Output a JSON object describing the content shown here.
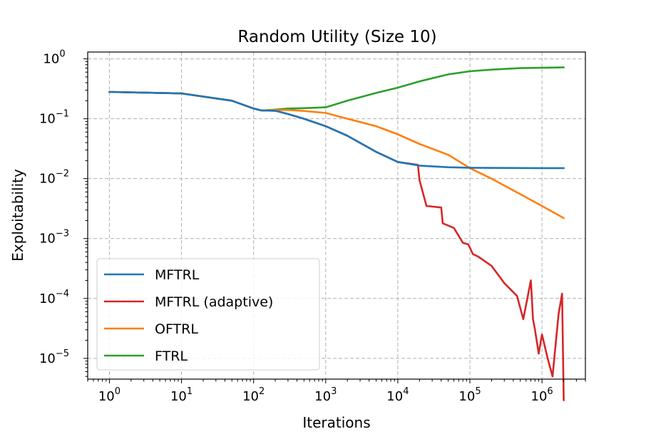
{
  "chart_data": {
    "type": "line",
    "title": "Random Utility (Size 10)",
    "xlabel": "Iterations",
    "ylabel": "Exploitability",
    "xscale": "log",
    "yscale": "log",
    "xlim": [
      0.5,
      4000000
    ],
    "ylim": [
      4.5e-06,
      1.3
    ],
    "x_ticks": [
      {
        "base": "10",
        "exp": "0",
        "value": 1
      },
      {
        "base": "10",
        "exp": "1",
        "value": 10
      },
      {
        "base": "10",
        "exp": "2",
        "value": 100
      },
      {
        "base": "10",
        "exp": "3",
        "value": 1000
      },
      {
        "base": "10",
        "exp": "4",
        "value": 10000
      },
      {
        "base": "10",
        "exp": "5",
        "value": 100000
      },
      {
        "base": "10",
        "exp": "6",
        "value": 1000000
      }
    ],
    "y_ticks": [
      {
        "base": "10",
        "exp": "0",
        "value": 1
      },
      {
        "base": "10",
        "exp": "−1",
        "value": 0.1
      },
      {
        "base": "10",
        "exp": "−2",
        "value": 0.01
      },
      {
        "base": "10",
        "exp": "−3",
        "value": 0.001
      },
      {
        "base": "10",
        "exp": "−4",
        "value": 0.0001
      },
      {
        "base": "10",
        "exp": "−5",
        "value": 1e-05
      }
    ],
    "grid": true,
    "legend_position": "lower-left",
    "series": [
      {
        "name": "MFTRL",
        "color": "#1f77b4",
        "x": [
          1,
          10,
          50,
          100,
          130,
          200,
          300,
          500,
          1000,
          2000,
          5000,
          10000,
          20000,
          50000,
          100000,
          1000000,
          2000000
        ],
        "y": [
          0.28,
          0.265,
          0.2,
          0.148,
          0.137,
          0.136,
          0.12,
          0.1,
          0.075,
          0.052,
          0.028,
          0.019,
          0.0165,
          0.0155,
          0.0152,
          0.015,
          0.015
        ]
      },
      {
        "name": "MFTRL (adaptive)",
        "color": "#d62728",
        "x": [
          1,
          10,
          50,
          100,
          130,
          200,
          300,
          500,
          1000,
          2000,
          5000,
          10000,
          19000,
          20000,
          25000,
          40000,
          42000,
          60000,
          80000,
          95000,
          110000,
          130000,
          200000,
          300000,
          450000,
          550000,
          700000,
          750000,
          800000,
          900000,
          1000000,
          1200000,
          1400000,
          1700000,
          1900000,
          2000000
        ],
        "y": [
          0.28,
          0.265,
          0.2,
          0.148,
          0.137,
          0.136,
          0.12,
          0.1,
          0.075,
          0.052,
          0.028,
          0.019,
          0.017,
          0.0095,
          0.0035,
          0.0033,
          0.0018,
          0.0015,
          0.00085,
          0.0008,
          0.00055,
          0.0005,
          0.00035,
          0.00018,
          0.00011,
          4.5e-05,
          0.0002,
          4.5e-05,
          3e-05,
          1.2e-05,
          2.5e-05,
          1e-05,
          5e-06,
          5.5e-05,
          0.00012,
          2e-06
        ]
      },
      {
        "name": "OFTRL",
        "color": "#ff7f0e",
        "x": [
          1,
          10,
          50,
          100,
          130,
          200,
          300,
          500,
          1000,
          2000,
          5000,
          10000,
          20000,
          50000,
          100000,
          200000,
          500000,
          1000000,
          2000000
        ],
        "y": [
          0.28,
          0.265,
          0.2,
          0.148,
          0.137,
          0.14,
          0.14,
          0.135,
          0.125,
          0.1,
          0.075,
          0.055,
          0.038,
          0.025,
          0.015,
          0.01,
          0.0055,
          0.0035,
          0.0022
        ]
      },
      {
        "name": "FTRL",
        "color": "#2ca02c",
        "x": [
          1,
          10,
          50,
          100,
          130,
          200,
          300,
          500,
          1000,
          2000,
          5000,
          10000,
          20000,
          50000,
          100000,
          200000,
          500000,
          1000000,
          2000000
        ],
        "y": [
          0.28,
          0.265,
          0.2,
          0.148,
          0.137,
          0.142,
          0.148,
          0.15,
          0.155,
          0.2,
          0.27,
          0.33,
          0.42,
          0.55,
          0.62,
          0.66,
          0.7,
          0.71,
          0.72
        ]
      }
    ]
  }
}
